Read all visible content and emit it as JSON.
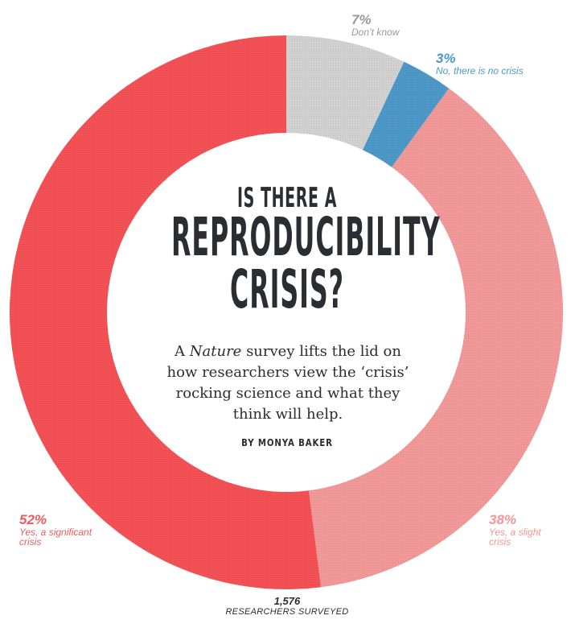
{
  "chart_data": {
    "type": "pie",
    "variant": "donut",
    "title": "IS THERE A REPRODUCIBILITY CRISIS?",
    "title_lines": [
      "IS THERE A",
      "REPRODUCIBILITY",
      "CRISIS?"
    ],
    "subtitle_parts": [
      "A ",
      "Nature",
      " survey lifts the lid on how researchers view the ‘crisis’ rocking science and what they think will help."
    ],
    "byline": "BY MONYA BAKER",
    "start": "top",
    "direction": "clockwise",
    "slices": [
      {
        "label": "Don’t know",
        "value": 7,
        "pct_label": "7%",
        "color": "#d4d4d4"
      },
      {
        "label": "No, there is no crisis",
        "value": 3,
        "pct_label": "3%",
        "color": "#4e9ac9"
      },
      {
        "label": "Yes, a slight crisis",
        "value": 38,
        "pct_label": "38%",
        "color": "#f59a9a"
      },
      {
        "label": "Yes, a significant crisis",
        "value": 52,
        "pct_label": "52%",
        "color": "#f65256"
      }
    ],
    "slight_label_lines": [
      "Yes, a slight",
      "crisis"
    ],
    "significant_label_lines": [
      "Yes, a significant",
      "crisis"
    ],
    "total": {
      "count": "1,576",
      "label": "RESEARCHERS SURVEYED"
    }
  }
}
